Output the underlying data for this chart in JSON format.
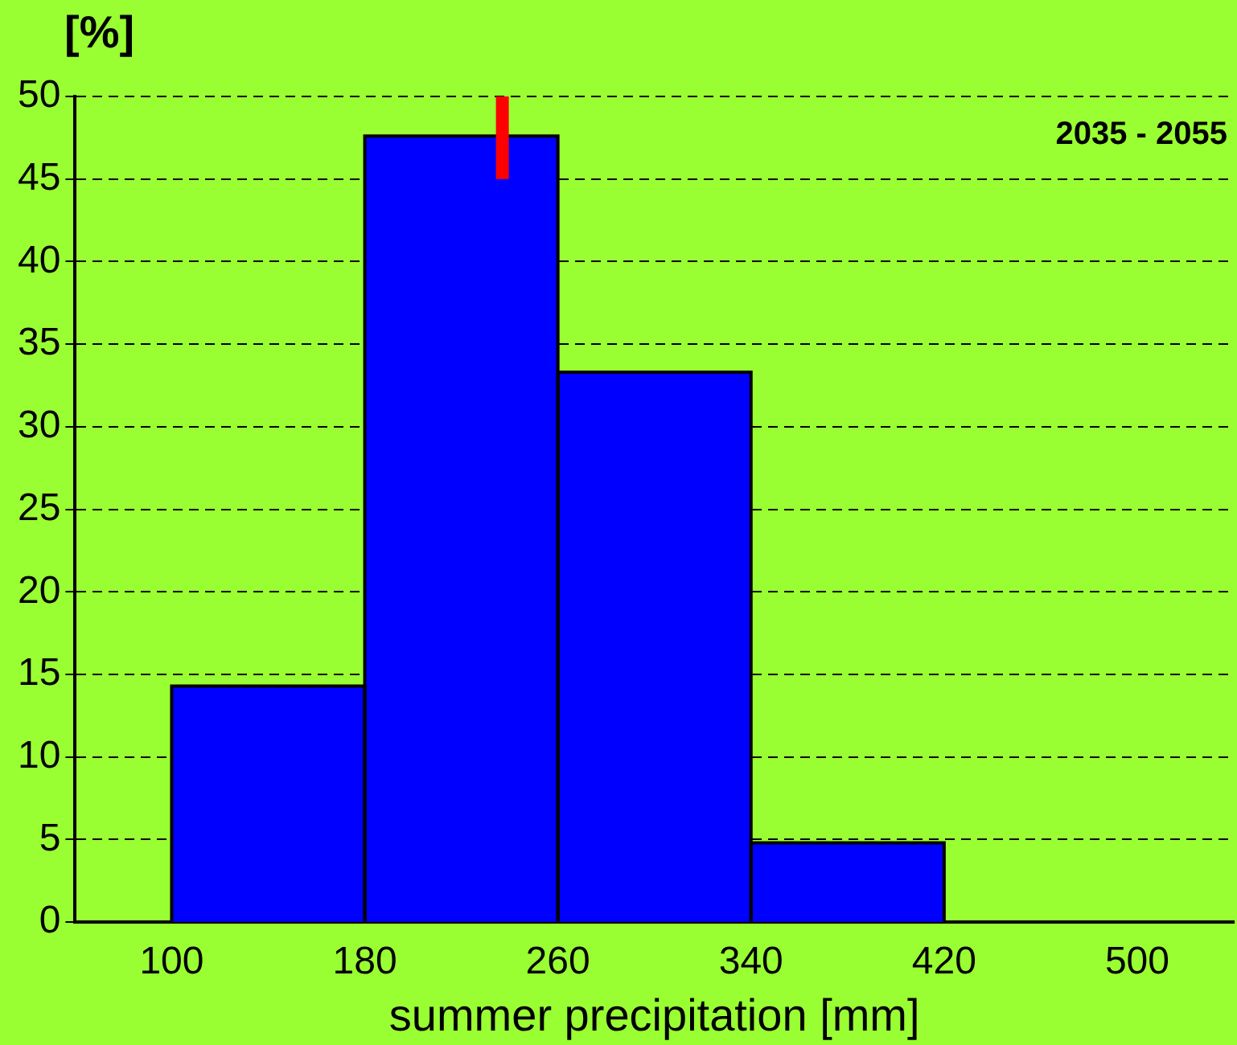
{
  "chart_data": {
    "type": "histogram",
    "ylabel": "[%]",
    "xlabel": "summer precipitation [mm]",
    "annotations": [
      "2035 - 2055"
    ],
    "bins": [
      100,
      180,
      260,
      340,
      420
    ],
    "values": [
      14.3,
      47.6,
      33.3,
      4.8
    ],
    "color": "#0000ff",
    "xlim": [
      60,
      540
    ],
    "xticks": [
      100,
      180,
      260,
      340,
      420,
      500
    ],
    "ylim": [
      0,
      50
    ],
    "yticks": [
      0,
      5,
      10,
      15,
      20,
      25,
      30,
      35,
      40,
      45,
      50
    ],
    "grid": "y",
    "ref_lines": [
      {
        "axis": "x",
        "value": 237,
        "color": "#ff0000"
      }
    ],
    "legend": false
  }
}
